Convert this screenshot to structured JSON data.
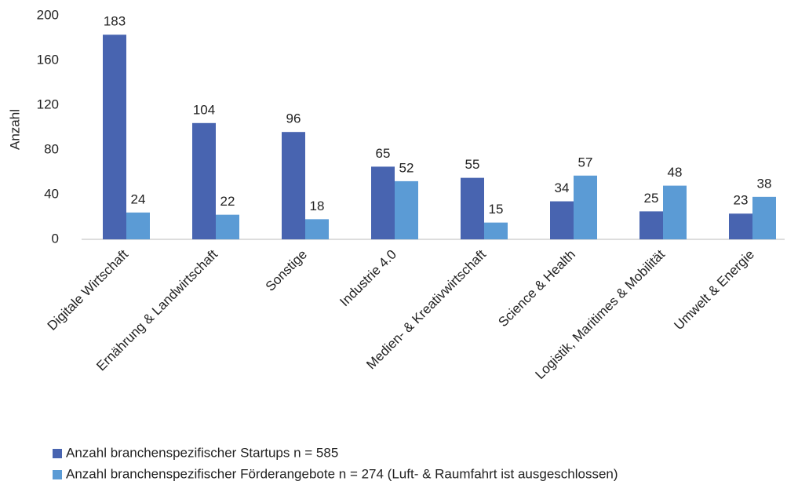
{
  "chart_data": {
    "type": "bar",
    "y_label": "Anzahl",
    "categories": [
      "Digitale Wirtschaft",
      "Ernährung & Landwirtschaft",
      "Sonstige",
      "Industrie 4.0",
      "Medien- & Kreativwirtschaft",
      "Science & Health",
      "Logistik, Maritimes & Mobilität",
      "Umwelt & Energie"
    ],
    "series": [
      {
        "name": "Anzahl branchenspezifischer Startups n = 585",
        "color": "#4864b0",
        "values": [
          183,
          104,
          96,
          65,
          55,
          34,
          25,
          23
        ]
      },
      {
        "name": "Anzahl branchenspezifischer Förderangebote n = 274 (Luft- & Raumfahrt ist ausgeschlossen)",
        "color": "#5b9bd5",
        "values": [
          24,
          22,
          18,
          52,
          15,
          57,
          48,
          38
        ]
      }
    ],
    "ylim": [
      0,
      200
    ],
    "yticks": [
      0,
      40,
      80,
      120,
      160,
      200
    ],
    "grid": false,
    "legend": "bottom"
  }
}
